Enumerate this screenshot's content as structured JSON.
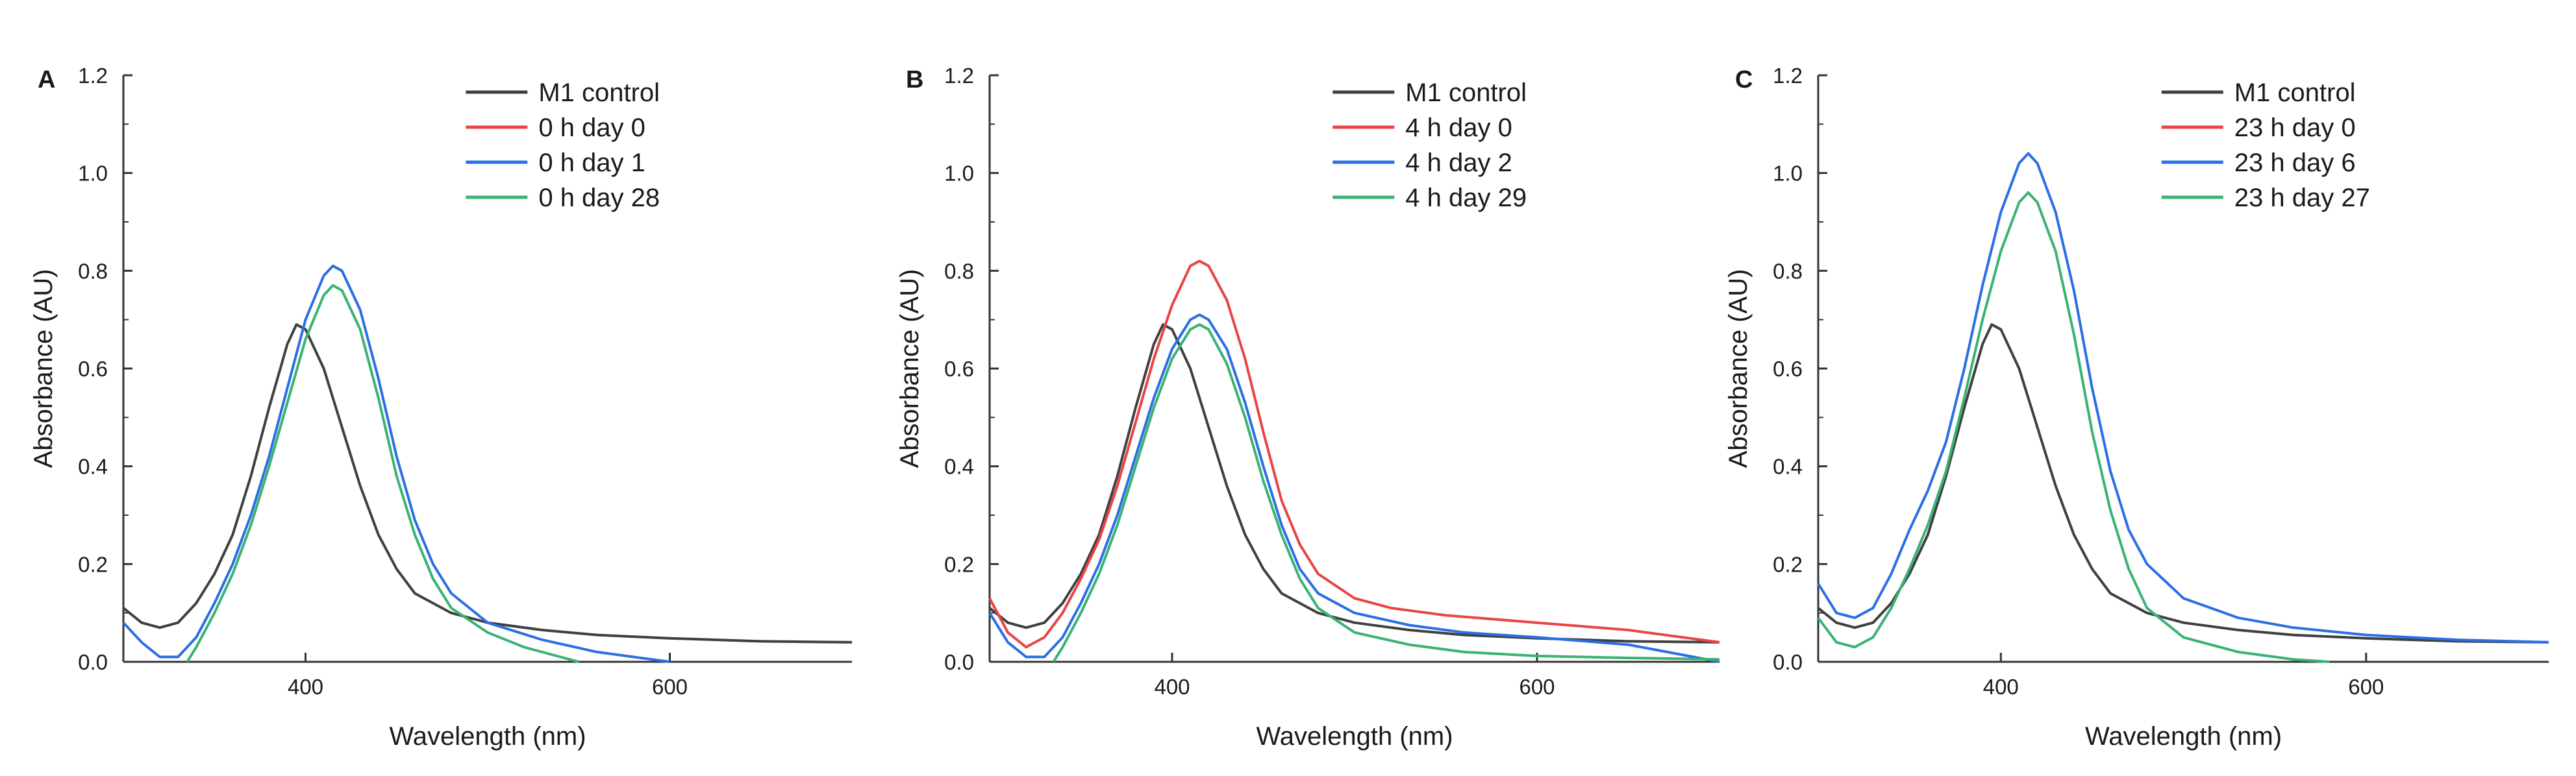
{
  "chart_data": [
    {
      "panel_label": "A",
      "type": "line",
      "xlabel": "Wavelength (nm)",
      "ylabel": "Absorbance (AU)",
      "xlim": [
        300,
        700
      ],
      "ylim": [
        0,
        1.2
      ],
      "x_ticks": [
        400,
        600
      ],
      "x_tick_labels": [
        "400",
        "600"
      ],
      "y_ticks": [
        0,
        0.2,
        0.4,
        0.6,
        0.8,
        1.0,
        1.2
      ],
      "y_tick_labels": [
        "0.0",
        "0.2",
        "0.4",
        "0.6",
        "0.8",
        "1.0",
        "1.2"
      ],
      "legend_position": "top-right",
      "series": [
        {
          "name": "M1 control",
          "color": "#404040",
          "points": [
            [
              300,
              0.11
            ],
            [
              310,
              0.08
            ],
            [
              320,
              0.07
            ],
            [
              330,
              0.08
            ],
            [
              340,
              0.12
            ],
            [
              350,
              0.18
            ],
            [
              360,
              0.26
            ],
            [
              370,
              0.38
            ],
            [
              380,
              0.52
            ],
            [
              390,
              0.65
            ],
            [
              395,
              0.69
            ],
            [
              400,
              0.68
            ],
            [
              410,
              0.6
            ],
            [
              420,
              0.48
            ],
            [
              430,
              0.36
            ],
            [
              440,
              0.26
            ],
            [
              450,
              0.19
            ],
            [
              460,
              0.14
            ],
            [
              480,
              0.1
            ],
            [
              500,
              0.08
            ],
            [
              530,
              0.065
            ],
            [
              560,
              0.055
            ],
            [
              600,
              0.048
            ],
            [
              650,
              0.042
            ],
            [
              700,
              0.04
            ]
          ]
        },
        {
          "name": "0 h day 0",
          "color": "#e84545",
          "points": []
        },
        {
          "name": "0 h day 1",
          "color": "#2b6fe3",
          "points": [
            [
              300,
              0.08
            ],
            [
              310,
              0.04
            ],
            [
              320,
              0.01
            ],
            [
              330,
              0.01
            ],
            [
              340,
              0.05
            ],
            [
              350,
              0.12
            ],
            [
              360,
              0.2
            ],
            [
              370,
              0.3
            ],
            [
              380,
              0.42
            ],
            [
              390,
              0.56
            ],
            [
              400,
              0.7
            ],
            [
              410,
              0.79
            ],
            [
              415,
              0.81
            ],
            [
              420,
              0.8
            ],
            [
              430,
              0.72
            ],
            [
              440,
              0.58
            ],
            [
              450,
              0.42
            ],
            [
              460,
              0.29
            ],
            [
              470,
              0.2
            ],
            [
              480,
              0.14
            ],
            [
              500,
              0.08
            ],
            [
              530,
              0.045
            ],
            [
              560,
              0.02
            ],
            [
              590,
              0.005
            ],
            [
              600,
              0.0
            ]
          ]
        },
        {
          "name": "0 h day 28",
          "color": "#3bb273",
          "points": [
            [
              335,
              0.0
            ],
            [
              340,
              0.03
            ],
            [
              350,
              0.1
            ],
            [
              360,
              0.18
            ],
            [
              370,
              0.28
            ],
            [
              380,
              0.4
            ],
            [
              390,
              0.53
            ],
            [
              400,
              0.66
            ],
            [
              410,
              0.75
            ],
            [
              415,
              0.77
            ],
            [
              420,
              0.76
            ],
            [
              430,
              0.68
            ],
            [
              440,
              0.54
            ],
            [
              450,
              0.38
            ],
            [
              460,
              0.26
            ],
            [
              470,
              0.17
            ],
            [
              480,
              0.11
            ],
            [
              500,
              0.06
            ],
            [
              520,
              0.03
            ],
            [
              540,
              0.01
            ],
            [
              550,
              0.0
            ]
          ]
        }
      ]
    },
    {
      "panel_label": "B",
      "type": "line",
      "xlabel": "Wavelength (nm)",
      "ylabel": "Absorbance (AU)",
      "xlim": [
        300,
        700
      ],
      "ylim": [
        0,
        1.2
      ],
      "x_ticks": [
        400,
        600
      ],
      "x_tick_labels": [
        "400",
        "600"
      ],
      "y_ticks": [
        0,
        0.2,
        0.4,
        0.6,
        0.8,
        1.0,
        1.2
      ],
      "y_tick_labels": [
        "0.0",
        "0.2",
        "0.4",
        "0.6",
        "0.8",
        "1.0",
        "1.2"
      ],
      "legend_position": "top-right",
      "series": [
        {
          "name": "M1 control",
          "color": "#404040",
          "points": [
            [
              300,
              0.11
            ],
            [
              310,
              0.08
            ],
            [
              320,
              0.07
            ],
            [
              330,
              0.08
            ],
            [
              340,
              0.12
            ],
            [
              350,
              0.18
            ],
            [
              360,
              0.26
            ],
            [
              370,
              0.38
            ],
            [
              380,
              0.52
            ],
            [
              390,
              0.65
            ],
            [
              395,
              0.69
            ],
            [
              400,
              0.68
            ],
            [
              410,
              0.6
            ],
            [
              420,
              0.48
            ],
            [
              430,
              0.36
            ],
            [
              440,
              0.26
            ],
            [
              450,
              0.19
            ],
            [
              460,
              0.14
            ],
            [
              480,
              0.1
            ],
            [
              500,
              0.08
            ],
            [
              530,
              0.065
            ],
            [
              560,
              0.055
            ],
            [
              600,
              0.048
            ],
            [
              650,
              0.042
            ],
            [
              700,
              0.04
            ]
          ]
        },
        {
          "name": "4 h day 0",
          "color": "#e84545",
          "points": [
            [
              300,
              0.13
            ],
            [
              310,
              0.06
            ],
            [
              320,
              0.03
            ],
            [
              330,
              0.05
            ],
            [
              340,
              0.1
            ],
            [
              350,
              0.17
            ],
            [
              360,
              0.25
            ],
            [
              370,
              0.36
            ],
            [
              380,
              0.49
            ],
            [
              390,
              0.62
            ],
            [
              400,
              0.73
            ],
            [
              410,
              0.81
            ],
            [
              415,
              0.82
            ],
            [
              420,
              0.81
            ],
            [
              430,
              0.74
            ],
            [
              440,
              0.62
            ],
            [
              450,
              0.47
            ],
            [
              460,
              0.33
            ],
            [
              470,
              0.24
            ],
            [
              480,
              0.18
            ],
            [
              500,
              0.13
            ],
            [
              520,
              0.11
            ],
            [
              550,
              0.095
            ],
            [
              600,
              0.08
            ],
            [
              650,
              0.065
            ],
            [
              700,
              0.04
            ]
          ]
        },
        {
          "name": "4 h day 2",
          "color": "#2b6fe3",
          "points": [
            [
              300,
              0.1
            ],
            [
              310,
              0.04
            ],
            [
              320,
              0.01
            ],
            [
              330,
              0.01
            ],
            [
              340,
              0.05
            ],
            [
              350,
              0.12
            ],
            [
              360,
              0.2
            ],
            [
              370,
              0.3
            ],
            [
              380,
              0.42
            ],
            [
              390,
              0.54
            ],
            [
              400,
              0.64
            ],
            [
              410,
              0.7
            ],
            [
              415,
              0.71
            ],
            [
              420,
              0.7
            ],
            [
              430,
              0.64
            ],
            [
              440,
              0.53
            ],
            [
              450,
              0.4
            ],
            [
              460,
              0.28
            ],
            [
              470,
              0.19
            ],
            [
              480,
              0.14
            ],
            [
              500,
              0.1
            ],
            [
              530,
              0.075
            ],
            [
              560,
              0.06
            ],
            [
              600,
              0.05
            ],
            [
              650,
              0.035
            ],
            [
              700,
              0.0
            ]
          ]
        },
        {
          "name": "4 h day 29",
          "color": "#3bb273",
          "points": [
            [
              335,
              0.0
            ],
            [
              340,
              0.03
            ],
            [
              350,
              0.1
            ],
            [
              360,
              0.18
            ],
            [
              370,
              0.28
            ],
            [
              380,
              0.4
            ],
            [
              390,
              0.52
            ],
            [
              400,
              0.62
            ],
            [
              410,
              0.68
            ],
            [
              415,
              0.69
            ],
            [
              420,
              0.68
            ],
            [
              430,
              0.61
            ],
            [
              440,
              0.5
            ],
            [
              450,
              0.37
            ],
            [
              460,
              0.26
            ],
            [
              470,
              0.17
            ],
            [
              480,
              0.11
            ],
            [
              500,
              0.06
            ],
            [
              530,
              0.035
            ],
            [
              560,
              0.02
            ],
            [
              600,
              0.012
            ],
            [
              650,
              0.008
            ],
            [
              700,
              0.005
            ]
          ]
        }
      ]
    },
    {
      "panel_label": "C",
      "type": "line",
      "xlabel": "Wavelength (nm)",
      "ylabel": "Absorbance (AU)",
      "xlim": [
        300,
        700
      ],
      "ylim": [
        0,
        1.2
      ],
      "x_ticks": [
        400,
        600
      ],
      "x_tick_labels": [
        "400",
        "600"
      ],
      "y_ticks": [
        0,
        0.2,
        0.4,
        0.6,
        0.8,
        1.0,
        1.2
      ],
      "y_tick_labels": [
        "0.0",
        "0.2",
        "0.4",
        "0.6",
        "0.8",
        "1.0",
        "1.2"
      ],
      "legend_position": "top-right",
      "series": [
        {
          "name": "M1 control",
          "color": "#404040",
          "points": [
            [
              300,
              0.11
            ],
            [
              310,
              0.08
            ],
            [
              320,
              0.07
            ],
            [
              330,
              0.08
            ],
            [
              340,
              0.12
            ],
            [
              350,
              0.18
            ],
            [
              360,
              0.26
            ],
            [
              370,
              0.38
            ],
            [
              380,
              0.52
            ],
            [
              390,
              0.65
            ],
            [
              395,
              0.69
            ],
            [
              400,
              0.68
            ],
            [
              410,
              0.6
            ],
            [
              420,
              0.48
            ],
            [
              430,
              0.36
            ],
            [
              440,
              0.26
            ],
            [
              450,
              0.19
            ],
            [
              460,
              0.14
            ],
            [
              480,
              0.1
            ],
            [
              500,
              0.08
            ],
            [
              530,
              0.065
            ],
            [
              560,
              0.055
            ],
            [
              600,
              0.048
            ],
            [
              650,
              0.042
            ],
            [
              700,
              0.04
            ]
          ]
        },
        {
          "name": "23 h day 0",
          "color": "#e84545",
          "points": []
        },
        {
          "name": "23 h day 6",
          "color": "#2b6fe3",
          "points": [
            [
              300,
              0.16
            ],
            [
              310,
              0.1
            ],
            [
              320,
              0.09
            ],
            [
              330,
              0.11
            ],
            [
              340,
              0.18
            ],
            [
              350,
              0.27
            ],
            [
              360,
              0.35
            ],
            [
              370,
              0.45
            ],
            [
              380,
              0.6
            ],
            [
              390,
              0.77
            ],
            [
              400,
              0.92
            ],
            [
              410,
              1.02
            ],
            [
              415,
              1.04
            ],
            [
              420,
              1.02
            ],
            [
              430,
              0.92
            ],
            [
              440,
              0.76
            ],
            [
              450,
              0.56
            ],
            [
              460,
              0.39
            ],
            [
              470,
              0.27
            ],
            [
              480,
              0.2
            ],
            [
              500,
              0.13
            ],
            [
              530,
              0.09
            ],
            [
              560,
              0.07
            ],
            [
              600,
              0.055
            ],
            [
              650,
              0.045
            ],
            [
              700,
              0.04
            ]
          ]
        },
        {
          "name": "23 h day 27",
          "color": "#3bb273",
          "points": [
            [
              300,
              0.09
            ],
            [
              310,
              0.04
            ],
            [
              320,
              0.03
            ],
            [
              330,
              0.05
            ],
            [
              340,
              0.11
            ],
            [
              350,
              0.19
            ],
            [
              360,
              0.28
            ],
            [
              370,
              0.39
            ],
            [
              380,
              0.54
            ],
            [
              390,
              0.7
            ],
            [
              400,
              0.84
            ],
            [
              410,
              0.94
            ],
            [
              415,
              0.96
            ],
            [
              420,
              0.94
            ],
            [
              430,
              0.84
            ],
            [
              440,
              0.67
            ],
            [
              450,
              0.47
            ],
            [
              460,
              0.31
            ],
            [
              470,
              0.19
            ],
            [
              480,
              0.11
            ],
            [
              500,
              0.05
            ],
            [
              530,
              0.02
            ],
            [
              560,
              0.005
            ],
            [
              580,
              0.0
            ]
          ]
        }
      ]
    }
  ]
}
